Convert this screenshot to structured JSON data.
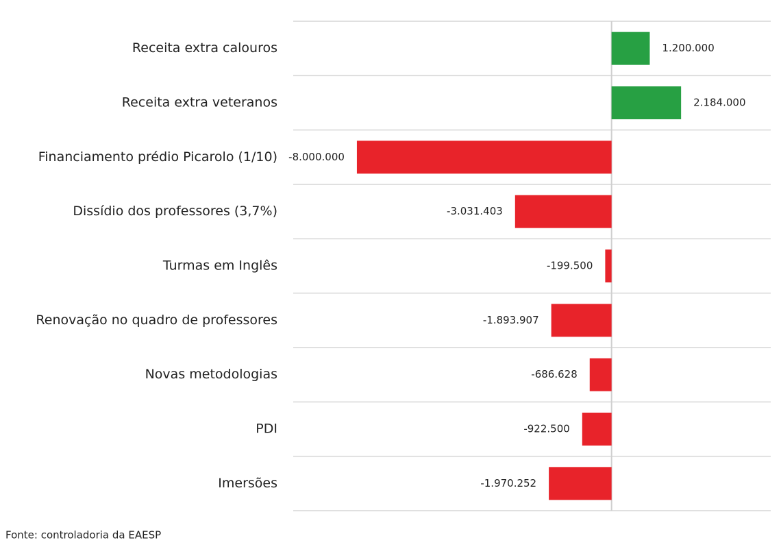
{
  "chart_data": {
    "type": "bar",
    "orientation": "horizontal",
    "categories": [
      "Receita extra calouros",
      "Receita extra veteranos",
      "Financiamento prédio Picarolo (1/10)",
      "Dissídio dos professores (3,7%)",
      "Turmas em Inglês",
      "Renovação no quadro de professores",
      "Novas metodologias",
      "PDI",
      "Imersões"
    ],
    "values": [
      1200000,
      2184000,
      -8000000,
      -3031403,
      -199500,
      -1893907,
      -686628,
      -922500,
      -1970252
    ],
    "value_labels": [
      "1.200.000",
      "2.184.000",
      "-8.000.000",
      "-3.031.403",
      "-199.500",
      "-1.893.907",
      "-686.628",
      "-922.500",
      "-1.970.252"
    ],
    "positive_color": "#27a043",
    "negative_color": "#e8232a",
    "xlim": [
      -10000000,
      5000000
    ],
    "source": "Fonte: controladoria da EAESP"
  }
}
